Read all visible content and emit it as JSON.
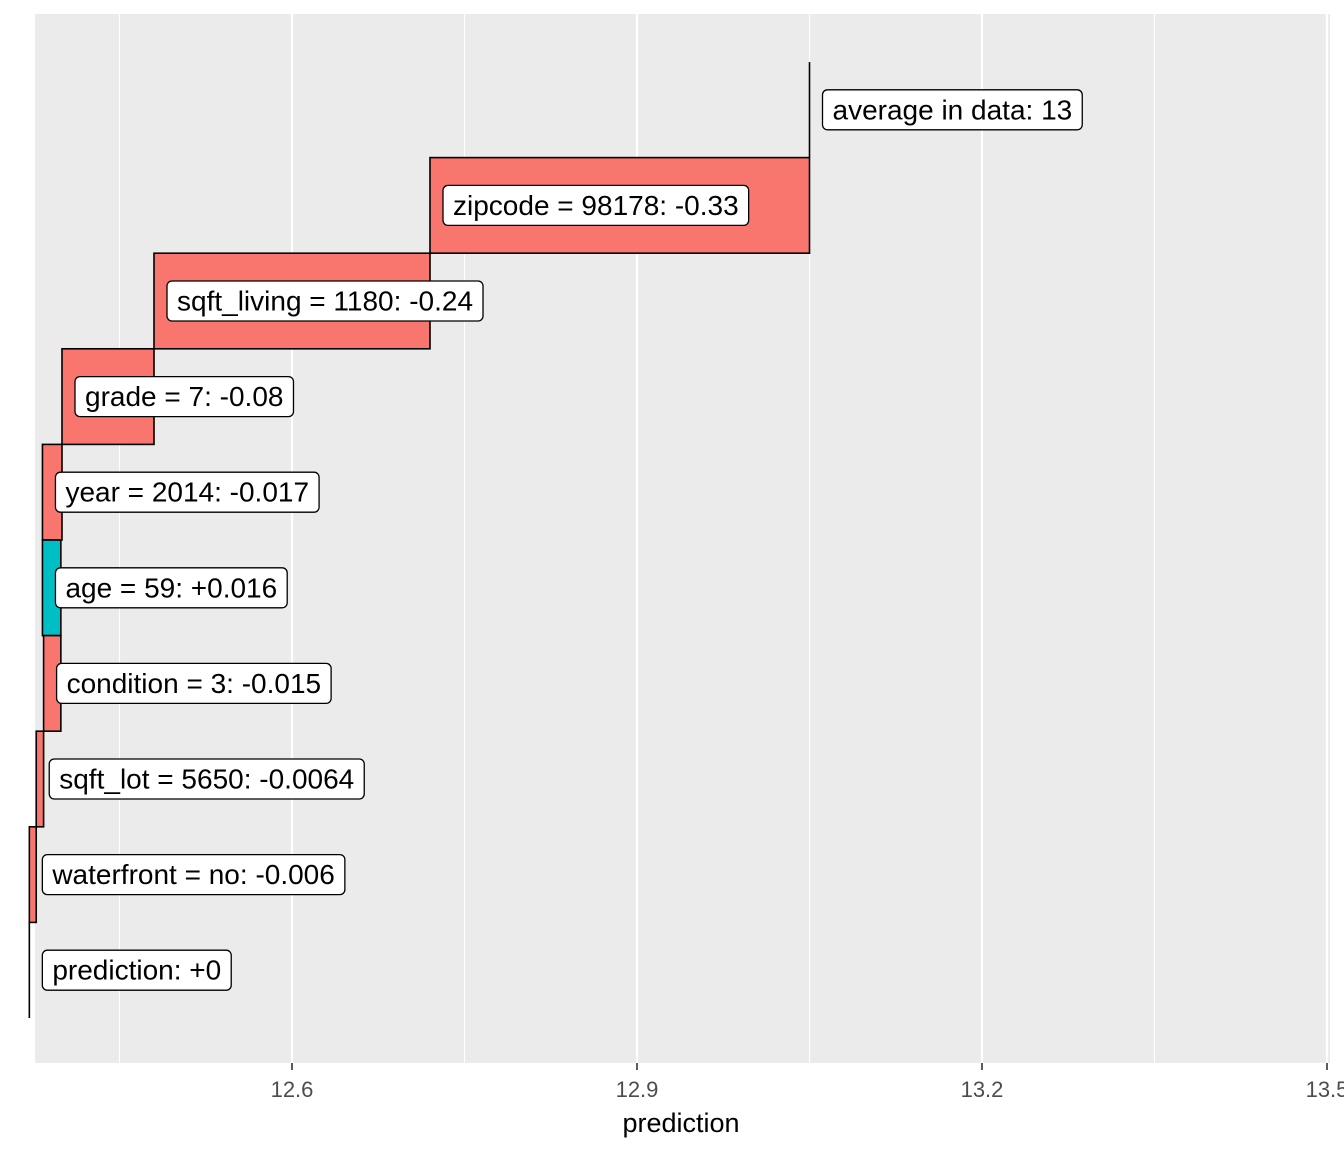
{
  "colors": {
    "negative": "#F8766D",
    "positive": "#00BFC4",
    "panel": "#EBEBEB",
    "grid": "#FFFFFF"
  },
  "chart_data": {
    "type": "waterfall",
    "title": "",
    "xlabel": "prediction",
    "ylabel": "",
    "xlim": [
      12.35,
      13.5
    ],
    "x_ticks": [
      12.6,
      12.9,
      13.2,
      13.5
    ],
    "x_tick_labels": [
      "12.6",
      "12.9",
      "13.2",
      "13.5"
    ],
    "grid": true,
    "start_value": 13.05,
    "steps": [
      {
        "label": "average in data: 13",
        "kind": "total",
        "start": 13.05,
        "end": 13.05
      },
      {
        "label": "zipcode = 98178: -0.33",
        "kind": "negative",
        "start": 13.05,
        "end": 12.72
      },
      {
        "label": "sqft_living = 1180: -0.24",
        "kind": "negative",
        "start": 12.72,
        "end": 12.48
      },
      {
        "label": "grade = 7: -0.08",
        "kind": "negative",
        "start": 12.48,
        "end": 12.4
      },
      {
        "label": "year = 2014: -0.017",
        "kind": "negative",
        "start": 12.4,
        "end": 12.383
      },
      {
        "label": "age = 59: +0.016",
        "kind": "positive",
        "start": 12.383,
        "end": 12.399
      },
      {
        "label": "condition = 3: -0.015",
        "kind": "negative",
        "start": 12.399,
        "end": 12.384
      },
      {
        "label": "sqft_lot = 5650: -0.0064",
        "kind": "negative",
        "start": 12.384,
        "end": 12.3776
      },
      {
        "label": "waterfront = no: -0.006",
        "kind": "negative",
        "start": 12.3776,
        "end": 12.3716
      },
      {
        "label": "prediction: +0",
        "kind": "total",
        "start": 12.3716,
        "end": 12.3716
      }
    ]
  }
}
